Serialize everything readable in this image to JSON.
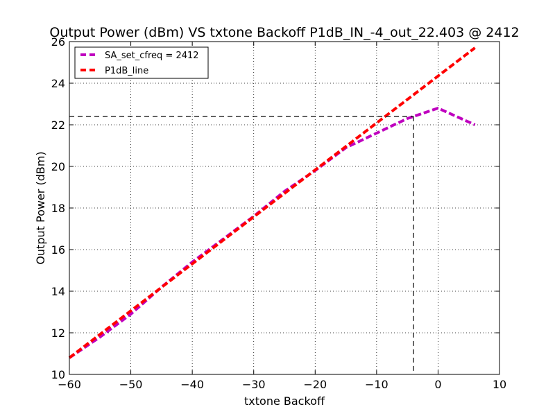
{
  "chart_data": {
    "type": "line",
    "title": "Output Power (dBm) VS txtone Backoff P1dB_IN_-4_out_22.403 @ 2412",
    "xlabel": "txtone Backoff",
    "ylabel": "Output Power (dBm)",
    "xlim": [
      -60,
      10
    ],
    "ylim": [
      10,
      26
    ],
    "xticks": [
      -60,
      -50,
      -40,
      -30,
      -20,
      -10,
      0,
      10
    ],
    "xtick_labels": [
      "−60",
      "−50",
      "−40",
      "−30",
      "−20",
      "−10",
      "0",
      "10"
    ],
    "yticks": [
      10,
      12,
      14,
      16,
      18,
      20,
      22,
      24,
      26
    ],
    "ytick_labels": [
      "10",
      "12",
      "14",
      "16",
      "18",
      "20",
      "22",
      "24",
      "26"
    ],
    "grid": true,
    "legend_position": "top-left",
    "series": [
      {
        "name": "SA_set_cfreq = 2412",
        "color": "#bf00bf",
        "style": "dashed",
        "x": [
          -60,
          -55,
          -50,
          -45,
          -40,
          -35,
          -30,
          -25,
          -20,
          -15,
          -10,
          -5,
          -4,
          0,
          6
        ],
        "y": [
          10.8,
          11.8,
          12.9,
          14.2,
          15.4,
          16.5,
          17.6,
          18.8,
          19.8,
          20.9,
          21.6,
          22.3,
          22.4,
          22.8,
          22.0
        ]
      },
      {
        "name": "P1dB_line",
        "color": "#ff0000",
        "style": "dashed",
        "x": [
          -60,
          6
        ],
        "y": [
          10.8,
          25.7
        ]
      }
    ],
    "annotations": {
      "p1db_marker": {
        "x": -4,
        "y": 22.403,
        "color": "#000000",
        "style": "dashed"
      }
    }
  }
}
